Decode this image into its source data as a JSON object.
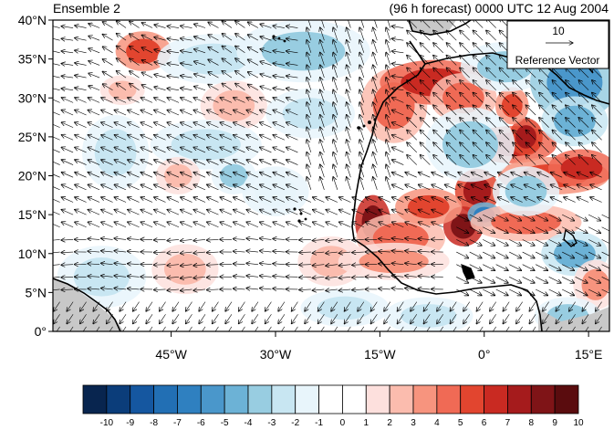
{
  "title_left": "Ensemble 2",
  "title_right": "(96 h forecast) 0000 UTC 12 Aug 2004",
  "reference_vector": {
    "magnitude": "10",
    "label": "Reference Vector"
  },
  "axes": {
    "lat_labels": [
      "40°N",
      "35°N",
      "30°N",
      "25°N",
      "20°N",
      "15°N",
      "10°N",
      "5°N",
      "0°"
    ],
    "lon_labels": [
      "45°W",
      "30°W",
      "15°W",
      "0°",
      "15°E"
    ]
  },
  "colorbar": {
    "labels": [
      "-10",
      "-9",
      "-8",
      "-7",
      "-6",
      "-5",
      "-4",
      "-3",
      "-2",
      "-1",
      "0",
      "1",
      "2",
      "3",
      "4",
      "5",
      "6",
      "7",
      "8",
      "9",
      "10"
    ],
    "colors": [
      "#08254f",
      "#0b3d7a",
      "#1557a0",
      "#226fb4",
      "#2f80c0",
      "#4a97cb",
      "#6cb2d6",
      "#98cde1",
      "#c8e6f2",
      "#e8f5fb",
      "#ffffff",
      "#ffffff",
      "#fde0dd",
      "#fbbcae",
      "#f7947e",
      "#f06a55",
      "#e2452f",
      "#c92a22",
      "#a51b1c",
      "#7f1417",
      "#5a0c0e"
    ]
  },
  "colors": {
    "frame": "#000000",
    "land_gray": "#c8c8c8"
  },
  "map_data": {
    "lat_range": [
      0,
      40
    ],
    "lon_range": [
      -62,
      18
    ],
    "anomaly_blobs": [
      {
        "lon": -49,
        "lat": 36,
        "rx": 2.5,
        "ry": 1.6,
        "v": 5
      },
      {
        "lon": -52,
        "lat": 31,
        "rx": 2,
        "ry": 1.2,
        "v": 2
      },
      {
        "lon": -39,
        "lat": 35,
        "rx": 5,
        "ry": 2,
        "v": -2
      },
      {
        "lon": -26,
        "lat": 36,
        "rx": 6,
        "ry": 2.5,
        "v": -3
      },
      {
        "lon": -36,
        "lat": 29,
        "rx": 3,
        "ry": 2,
        "v": 2
      },
      {
        "lon": -25,
        "lat": 28,
        "rx": 4,
        "ry": 2,
        "v": -2
      },
      {
        "lon": -40,
        "lat": 24,
        "rx": 5,
        "ry": 2,
        "v": -2
      },
      {
        "lon": -36,
        "lat": 20,
        "rx": 2,
        "ry": 1.5,
        "v": -3
      },
      {
        "lon": -44,
        "lat": 20,
        "rx": 2,
        "ry": 1.5,
        "v": 2
      },
      {
        "lon": -53,
        "lat": 23,
        "rx": 3,
        "ry": 3,
        "v": -2
      },
      {
        "lon": -55,
        "lat": 7,
        "rx": 4,
        "ry": 2.5,
        "v": -2
      },
      {
        "lon": -43,
        "lat": 8,
        "rx": 3,
        "ry": 2,
        "v": 2
      },
      {
        "lon": -30,
        "lat": 18,
        "rx": 3,
        "ry": 2,
        "v": -1
      },
      {
        "lon": -22,
        "lat": 9,
        "rx": 3,
        "ry": 2,
        "v": 2
      },
      {
        "lon": -20,
        "lat": 3,
        "rx": 4,
        "ry": 1.5,
        "v": -2
      },
      {
        "lon": -13,
        "lat": 29,
        "rx": 3,
        "ry": 3,
        "v": 4
      },
      {
        "lon": -7,
        "lat": 32,
        "rx": 5,
        "ry": 1.8,
        "v": 6
      },
      {
        "lon": -3,
        "lat": 30,
        "rx": 3,
        "ry": 2,
        "v": 4
      },
      {
        "lon": -16,
        "lat": 14,
        "rx": 1.6,
        "ry": 2.2,
        "v": 8
      },
      {
        "lon": -12,
        "lat": 12,
        "rx": 4,
        "ry": 2,
        "v": 4
      },
      {
        "lon": -13,
        "lat": 9,
        "rx": 5,
        "ry": 1.5,
        "v": 3
      },
      {
        "lon": -1,
        "lat": 18,
        "rx": 2,
        "ry": 1.8,
        "v": 7
      },
      {
        "lon": -3,
        "lat": 13.5,
        "rx": 1.8,
        "ry": 1.6,
        "v": 8
      },
      {
        "lon": -8,
        "lat": 16,
        "rx": 3,
        "ry": 1.5,
        "v": 5
      },
      {
        "lon": 0,
        "lat": 15,
        "rx": 1.5,
        "ry": 1,
        "v": -6
      },
      {
        "lon": 4,
        "lat": 24,
        "rx": 4,
        "ry": 1.5,
        "v": 6
      },
      {
        "lon": 6,
        "lat": 25,
        "rx": 1.5,
        "ry": 1.5,
        "v": 7
      },
      {
        "lon": 10,
        "lat": 20,
        "rx": 5,
        "ry": 1.5,
        "v": 5
      },
      {
        "lon": 14,
        "lat": 21,
        "rx": 3,
        "ry": 1.5,
        "v": 6
      },
      {
        "lon": 6,
        "lat": 14,
        "rx": 5,
        "ry": 1.5,
        "v": 4
      },
      {
        "lon": 4,
        "lat": 29,
        "rx": 1.5,
        "ry": 1.5,
        "v": 5
      },
      {
        "lon": 3,
        "lat": 34,
        "rx": 4,
        "ry": 2,
        "v": -3
      },
      {
        "lon": 13,
        "lat": 32,
        "rx": 4,
        "ry": 3,
        "v": -5
      },
      {
        "lon": 13,
        "lat": 27,
        "rx": 3,
        "ry": 2,
        "v": -4
      },
      {
        "lon": -2,
        "lat": 24,
        "rx": 4,
        "ry": 3,
        "v": -3
      },
      {
        "lon": 6,
        "lat": 18,
        "rx": 3,
        "ry": 2,
        "v": -3
      },
      {
        "lon": 13,
        "lat": 10,
        "rx": 3,
        "ry": 1.8,
        "v": -4
      },
      {
        "lon": 16,
        "lat": 6,
        "rx": 2,
        "ry": 2,
        "v": 3
      },
      {
        "lon": -8,
        "lat": 2,
        "rx": 4,
        "ry": 1.5,
        "v": -2
      },
      {
        "lon": 12,
        "lat": 2,
        "rx": 3,
        "ry": 1.5,
        "v": -3
      }
    ]
  }
}
